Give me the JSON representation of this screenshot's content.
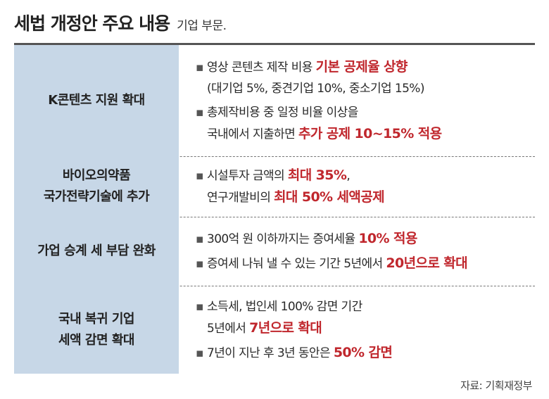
{
  "title": {
    "main": "세법 개정안 주요 내용",
    "sub": "기업 부문."
  },
  "rows": [
    {
      "category": "K콘텐츠 지원 확대",
      "items": [
        [
          "영상 콘텐츠 제작 비용 ",
          "기본 공제율 상향",
          "(대기업 5%, 중견기업 10%, 중소기업 15%)"
        ],
        [
          "총제작비용 중 일정 비율 이상을",
          "국내에서 지출하면 ",
          "추가 공제 10~15% 적용"
        ]
      ]
    },
    {
      "category_line1": "바이오의약품",
      "category_line2": "국가전략기술에 추가",
      "items": [
        [
          "시설투자 금액의 ",
          "최대 35%",
          ",",
          "연구개발비의 ",
          "최대 50% 세액공제"
        ]
      ]
    },
    {
      "category": "가업 승계 세 부담 완화",
      "items": [
        [
          "300억 원 이하까지는 증여세율 ",
          "10% 적용"
        ],
        [
          "증여세 나눠 낼 수 있는 기간 5년에서 ",
          "20년으로 확대"
        ]
      ]
    },
    {
      "category_line1": "국내 복귀 기업",
      "category_line2": "세액 감면 확대",
      "items": [
        [
          "소득세, 법인세 100% 감면 기간",
          "5년에서 ",
          "7년으로 확대"
        ],
        [
          "7년이 지난 후 3년 동안은 ",
          "50% 감면"
        ]
      ]
    }
  ],
  "bullet_symbol": "▪",
  "source": "자료: 기획재정부",
  "colors": {
    "highlight": "#c0272d",
    "category_bg": "#c7d7e7",
    "rule": "#555555"
  }
}
